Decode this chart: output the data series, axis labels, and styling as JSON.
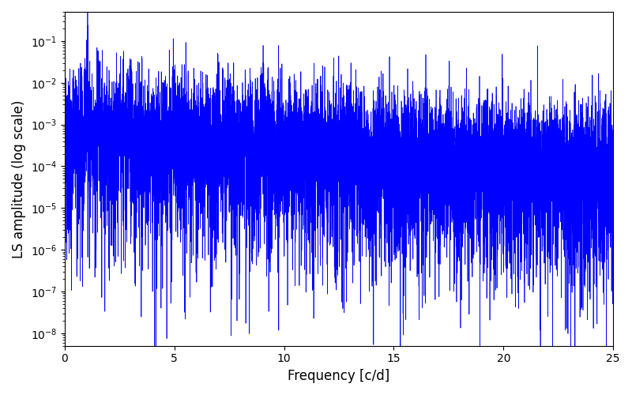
{
  "xlabel": "Frequency [c/d]",
  "ylabel": "LS amplitude (log scale)",
  "line_color": "#0000ff",
  "line_width": 0.5,
  "xlim": [
    0,
    25
  ],
  "ylim": [
    5e-09,
    0.5
  ],
  "yscale": "log",
  "figsize": [
    8.0,
    5.0
  ],
  "dpi": 100,
  "background_color": "#ffffff",
  "freq_min": 0.0,
  "freq_max": 25.0,
  "n_points": 10000,
  "seed": 77,
  "yticks": [
    1e-08,
    1e-07,
    1e-06,
    1e-05,
    0.0001,
    0.001,
    0.01,
    0.1
  ],
  "xticks": [
    0,
    5,
    10,
    15,
    20,
    25
  ]
}
